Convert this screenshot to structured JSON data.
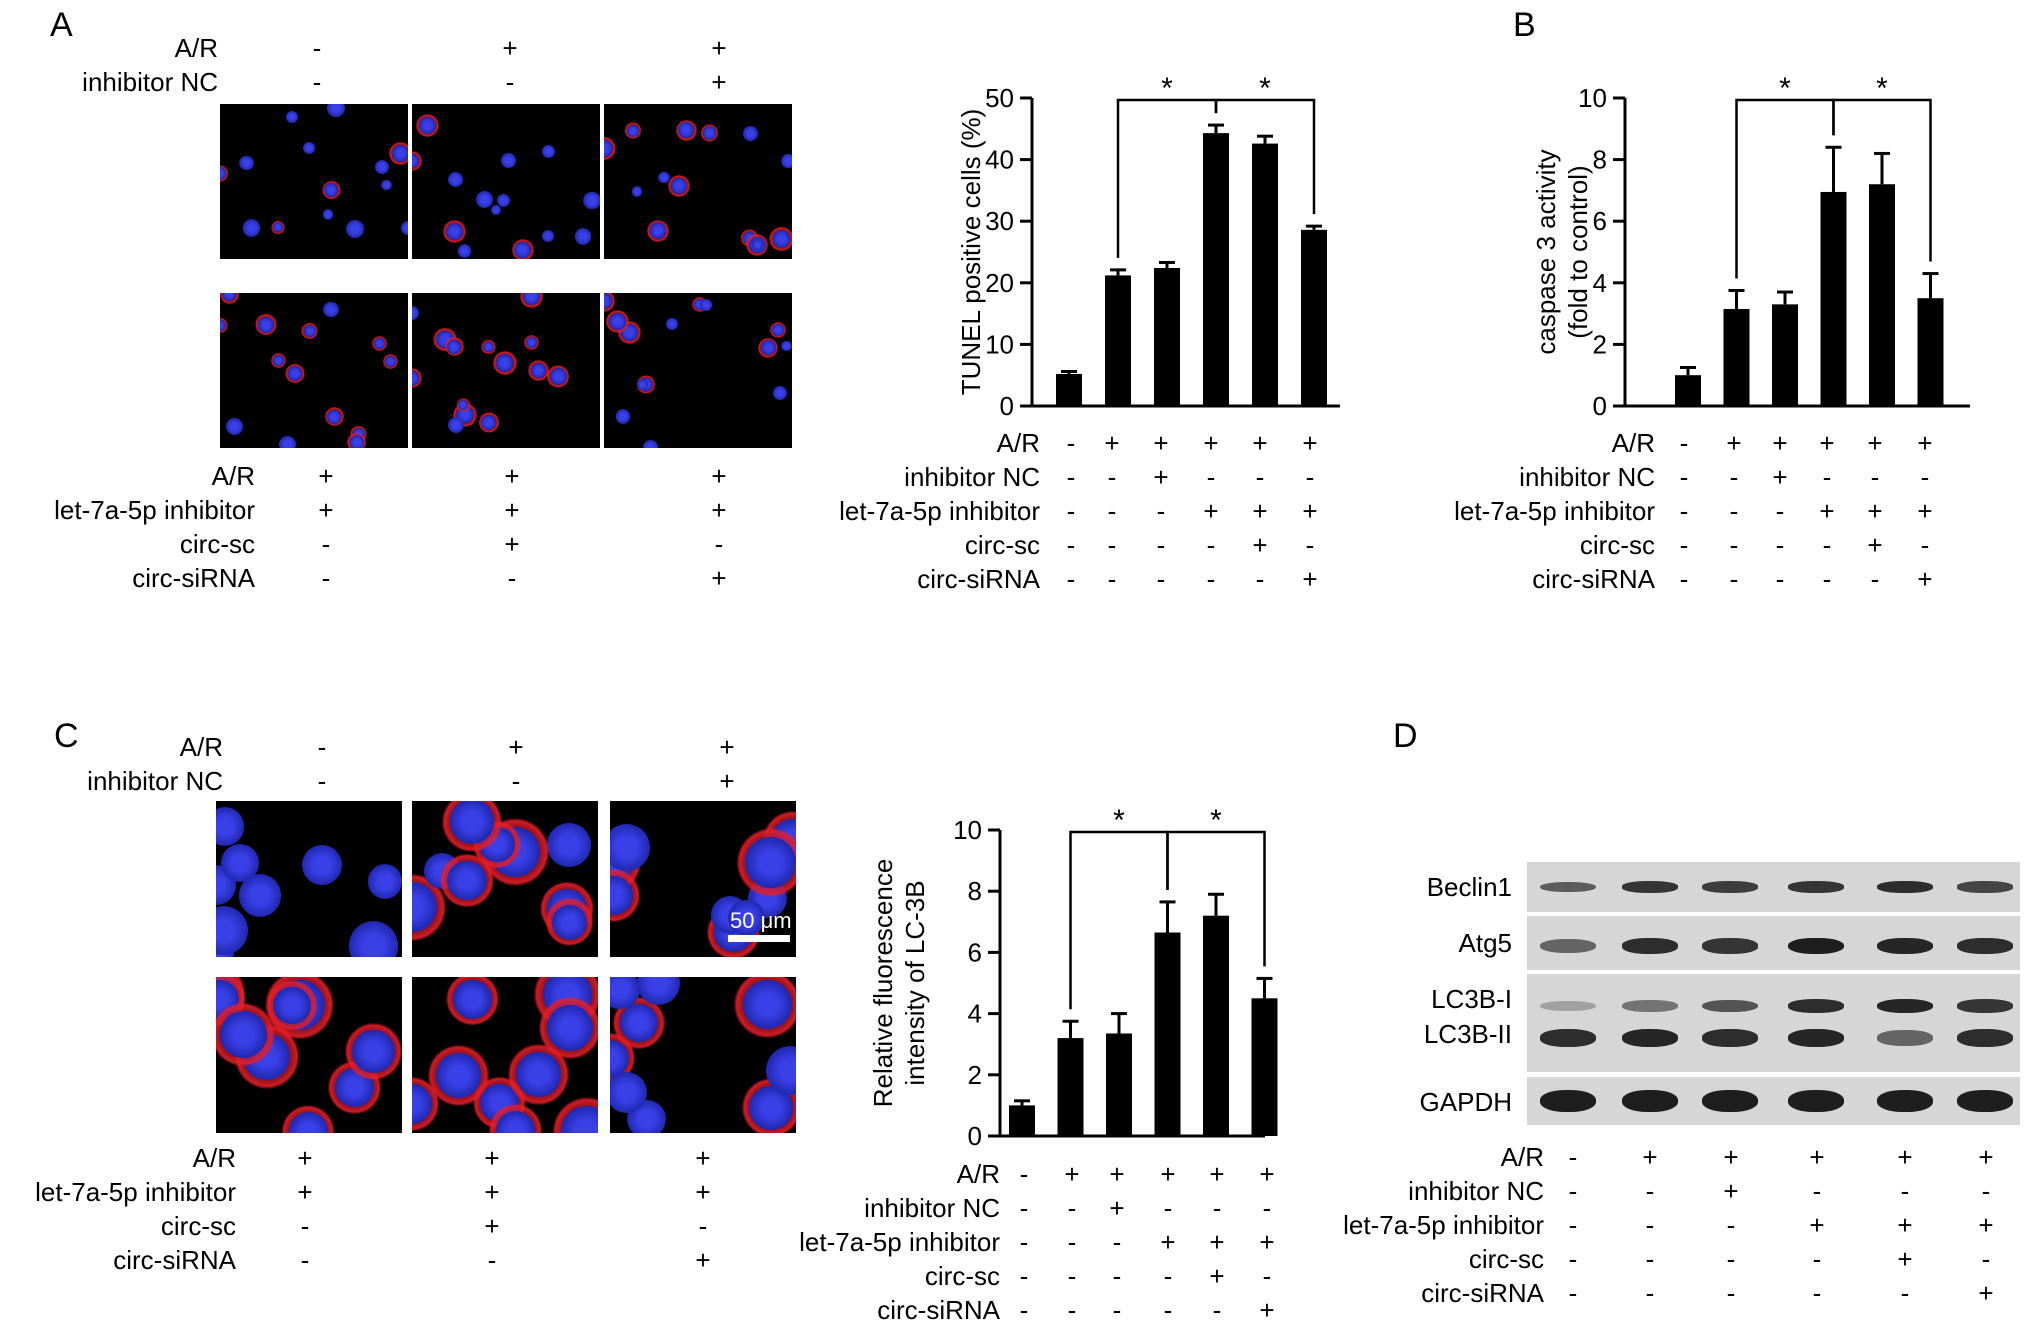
{
  "panels": {
    "A": {
      "letter": "A",
      "top_conditions": [
        {
          "label": "A/R",
          "symbols": [
            "-",
            "+",
            "+"
          ]
        },
        {
          "label": "inhibitor NC",
          "symbols": [
            "-",
            "-",
            "+"
          ]
        }
      ],
      "bottom_conditions": [
        {
          "label": "A/R",
          "symbols": [
            "+",
            "+",
            "+"
          ]
        },
        {
          "label": "let-7a-5p inhibitor",
          "symbols": [
            "+",
            "+",
            "+"
          ]
        },
        {
          "label": "circ-sc",
          "symbols": [
            "-",
            "+",
            "-"
          ]
        },
        {
          "label": "circ-siRNA",
          "symbols": [
            "-",
            "-",
            "+"
          ]
        }
      ]
    },
    "B": {
      "letter": "B"
    },
    "C": {
      "letter": "C",
      "scale_bar": "50 μm",
      "top_conditions": [
        {
          "label": "A/R",
          "symbols": [
            "-",
            "+",
            "+"
          ]
        },
        {
          "label": "inhibitor NC",
          "symbols": [
            "-",
            "-",
            "+"
          ]
        }
      ],
      "bottom_conditions": [
        {
          "label": "A/R",
          "symbols": [
            "+",
            "+",
            "+"
          ]
        },
        {
          "label": "let-7a-5p inhibitor",
          "symbols": [
            "+",
            "+",
            "+"
          ]
        },
        {
          "label": "circ-sc",
          "symbols": [
            "-",
            "+",
            "-"
          ]
        },
        {
          "label": "circ-siRNA",
          "symbols": [
            "-",
            "-",
            "+"
          ]
        }
      ]
    },
    "D": {
      "letter": "D",
      "blot_labels": [
        "Beclin1",
        "Atg5",
        "LC3B-I",
        "LC3B-II",
        "GAPDH"
      ],
      "conditions": [
        {
          "label": "A/R",
          "symbols": [
            "-",
            "+",
            "+",
            "+",
            "+",
            "+"
          ]
        },
        {
          "label": "inhibitor NC",
          "symbols": [
            "-",
            "-",
            "+",
            "-",
            "-",
            "-"
          ]
        },
        {
          "label": "let-7a-5p inhibitor",
          "symbols": [
            "-",
            "-",
            "-",
            "+",
            "+",
            "+"
          ]
        },
        {
          "label": "circ-sc",
          "symbols": [
            "-",
            "-",
            "-",
            "-",
            "+",
            "-"
          ]
        },
        {
          "label": "circ-siRNA",
          "symbols": [
            "-",
            "-",
            "-",
            "-",
            "-",
            "+"
          ]
        }
      ]
    }
  },
  "chart_data": [
    {
      "id": "tunel",
      "type": "bar",
      "ylabel": "TUNEL positive cells (%)",
      "ylim": [
        0,
        50
      ],
      "yticks": [
        0,
        10,
        20,
        30,
        40,
        50
      ],
      "values": [
        5.2,
        21.2,
        22.4,
        44.3,
        42.6,
        28.6
      ],
      "errors": [
        0.4,
        0.9,
        0.9,
        1.3,
        1.2,
        0.6
      ],
      "significance": [
        {
          "from": 1,
          "to": 3,
          "label": "*"
        },
        {
          "from": 3,
          "to": 5,
          "label": "*"
        }
      ],
      "conditions": [
        {
          "label": "A/R",
          "symbols": [
            "-",
            "+",
            "+",
            "+",
            "+",
            "+"
          ]
        },
        {
          "label": "inhibitor NC",
          "symbols": [
            "-",
            "-",
            "+",
            "-",
            "-",
            "-"
          ]
        },
        {
          "label": "let-7a-5p inhibitor",
          "symbols": [
            "-",
            "-",
            "-",
            "+",
            "+",
            "+"
          ]
        },
        {
          "label": "circ-sc",
          "symbols": [
            "-",
            "-",
            "-",
            "-",
            "+",
            "-"
          ]
        },
        {
          "label": "circ-siRNA",
          "symbols": [
            "-",
            "-",
            "-",
            "-",
            "-",
            "+"
          ]
        }
      ]
    },
    {
      "id": "caspase",
      "type": "bar",
      "ylabel_lines": [
        "caspase 3 activity",
        "(fold to control)"
      ],
      "ylim": [
        0,
        10
      ],
      "yticks": [
        0,
        2,
        4,
        6,
        8,
        10
      ],
      "values": [
        1.0,
        3.15,
        3.3,
        6.95,
        7.2,
        3.5
      ],
      "errors": [
        0.25,
        0.6,
        0.4,
        1.45,
        1.0,
        0.8
      ],
      "significance": [
        {
          "from": 1,
          "to": 3,
          "label": "*"
        },
        {
          "from": 3,
          "to": 5,
          "label": "*"
        }
      ],
      "conditions": [
        {
          "label": "A/R",
          "symbols": [
            "-",
            "+",
            "+",
            "+",
            "+",
            "+"
          ]
        },
        {
          "label": "inhibitor NC",
          "symbols": [
            "-",
            "-",
            "+",
            "-",
            "-",
            "-"
          ]
        },
        {
          "label": "let-7a-5p inhibitor",
          "symbols": [
            "-",
            "-",
            "-",
            "+",
            "+",
            "+"
          ]
        },
        {
          "label": "circ-sc",
          "symbols": [
            "-",
            "-",
            "-",
            "-",
            "+",
            "-"
          ]
        },
        {
          "label": "circ-siRNA",
          "symbols": [
            "-",
            "-",
            "-",
            "-",
            "-",
            "+"
          ]
        }
      ]
    },
    {
      "id": "lc3b",
      "type": "bar",
      "ylabel_lines": [
        "Relative fluorescence",
        "intensity of LC-3B"
      ],
      "ylim": [
        0,
        10
      ],
      "yticks": [
        0,
        2,
        4,
        6,
        8,
        10
      ],
      "values": [
        1.0,
        3.2,
        3.35,
        6.65,
        7.2,
        4.5
      ],
      "errors": [
        0.15,
        0.55,
        0.65,
        1.0,
        0.7,
        0.65
      ],
      "significance": [
        {
          "from": 1,
          "to": 3,
          "label": "*"
        },
        {
          "from": 3,
          "to": 5,
          "label": "*"
        }
      ],
      "conditions": [
        {
          "label": "A/R",
          "symbols": [
            "-",
            "+",
            "+",
            "+",
            "+",
            "+"
          ]
        },
        {
          "label": "inhibitor NC",
          "symbols": [
            "-",
            "-",
            "+",
            "-",
            "-",
            "-"
          ]
        },
        {
          "label": "let-7a-5p inhibitor",
          "symbols": [
            "-",
            "-",
            "-",
            "+",
            "+",
            "+"
          ]
        },
        {
          "label": "circ-sc",
          "symbols": [
            "-",
            "-",
            "-",
            "-",
            "+",
            "-"
          ]
        },
        {
          "label": "circ-siRNA",
          "symbols": [
            "-",
            "-",
            "-",
            "-",
            "-",
            "+"
          ]
        }
      ]
    }
  ]
}
